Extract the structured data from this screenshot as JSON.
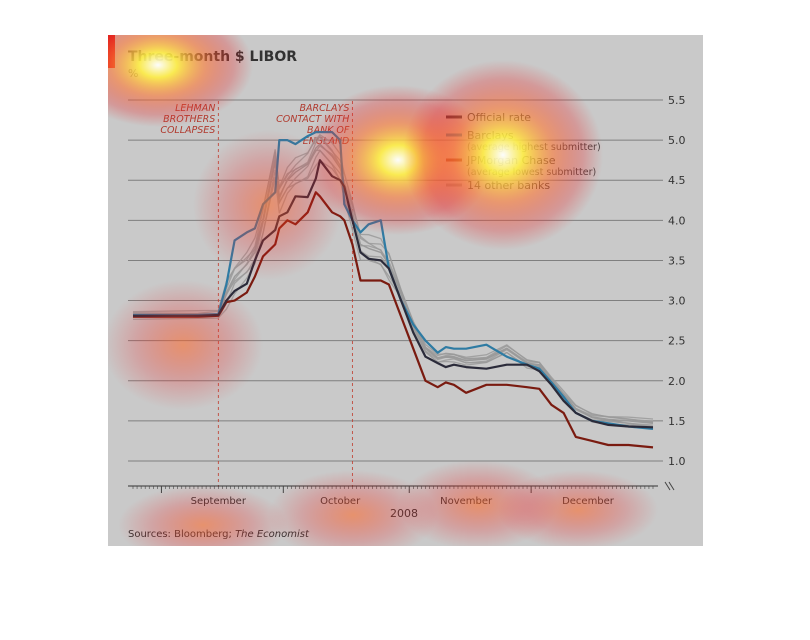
{
  "chart_data": {
    "type": "line",
    "title": "Three-month $ LIBOR",
    "unit": "%",
    "year_label": "2008",
    "ylim": [
      1.0,
      5.5
    ],
    "yticks": [
      1.0,
      1.5,
      2.0,
      2.5,
      3.0,
      3.5,
      4.0,
      4.5,
      5.0,
      5.5
    ],
    "ytick_labels": [
      "1.0",
      "1.5",
      "2.0",
      "2.5",
      "3.0",
      "3.5",
      "4.0",
      "4.5",
      "5.0",
      "5.5"
    ],
    "x_range": [
      "2008-08-25",
      "2008-12-31"
    ],
    "month_ticks": [
      {
        "label": "September",
        "date": "2008-09-15"
      },
      {
        "label": "October",
        "date": "2008-10-15"
      },
      {
        "label": "November",
        "date": "2008-11-15"
      },
      {
        "label": "December",
        "date": "2008-12-15"
      }
    ],
    "grid": true,
    "legend_position": "top-right",
    "annotations": [
      {
        "date": "2008-09-15",
        "lines": [
          "LEHMAN",
          "BROTHERS",
          "COLLAPSES"
        ]
      },
      {
        "date": "2008-10-18",
        "lines": [
          "BARCLAYS",
          "CONTACT WITH",
          "BANK OF",
          "ENGLAND"
        ]
      }
    ],
    "series": [
      {
        "name": "Official rate",
        "color": "#2b2b3a",
        "points": [
          [
            "2008-08-25",
            2.81
          ],
          [
            "2008-09-10",
            2.81
          ],
          [
            "2008-09-15",
            2.82
          ],
          [
            "2008-09-17",
            3.0
          ],
          [
            "2008-09-19",
            3.12
          ],
          [
            "2008-09-22",
            3.21
          ],
          [
            "2008-09-24",
            3.5
          ],
          [
            "2008-09-26",
            3.75
          ],
          [
            "2008-09-29",
            3.88
          ],
          [
            "2008-09-30",
            4.05
          ],
          [
            "2008-10-02",
            4.1
          ],
          [
            "2008-10-04",
            4.3
          ],
          [
            "2008-10-07",
            4.29
          ],
          [
            "2008-10-09",
            4.52
          ],
          [
            "2008-10-10",
            4.75
          ],
          [
            "2008-10-13",
            4.55
          ],
          [
            "2008-10-15",
            4.5
          ],
          [
            "2008-10-16",
            4.42
          ],
          [
            "2008-10-18",
            4.0
          ],
          [
            "2008-10-20",
            3.6
          ],
          [
            "2008-10-22",
            3.52
          ],
          [
            "2008-10-25",
            3.5
          ],
          [
            "2008-10-27",
            3.4
          ],
          [
            "2008-10-30",
            3.0
          ],
          [
            "2008-11-02",
            2.6
          ],
          [
            "2008-11-05",
            2.3
          ],
          [
            "2008-11-08",
            2.22
          ],
          [
            "2008-11-10",
            2.17
          ],
          [
            "2008-11-12",
            2.2
          ],
          [
            "2008-11-15",
            2.17
          ],
          [
            "2008-11-20",
            2.15
          ],
          [
            "2008-11-25",
            2.2
          ],
          [
            "2008-11-30",
            2.2
          ],
          [
            "2008-12-03",
            2.12
          ],
          [
            "2008-12-06",
            1.95
          ],
          [
            "2008-12-09",
            1.75
          ],
          [
            "2008-12-12",
            1.6
          ],
          [
            "2008-12-16",
            1.5
          ],
          [
            "2008-12-20",
            1.45
          ],
          [
            "2008-12-25",
            1.43
          ],
          [
            "2008-12-31",
            1.42
          ]
        ]
      },
      {
        "name": "Barclays",
        "subtitle": "(average highest submitter)",
        "color": "#2e7ba3",
        "points": [
          [
            "2008-08-25",
            2.82
          ],
          [
            "2008-09-10",
            2.82
          ],
          [
            "2008-09-15",
            2.83
          ],
          [
            "2008-09-17",
            3.2
          ],
          [
            "2008-09-19",
            3.75
          ],
          [
            "2008-09-22",
            3.85
          ],
          [
            "2008-09-24",
            3.9
          ],
          [
            "2008-09-26",
            4.2
          ],
          [
            "2008-09-29",
            4.35
          ],
          [
            "2008-09-30",
            5.0
          ],
          [
            "2008-10-02",
            5.0
          ],
          [
            "2008-10-04",
            4.95
          ],
          [
            "2008-10-07",
            5.05
          ],
          [
            "2008-10-09",
            5.1
          ],
          [
            "2008-10-10",
            5.1
          ],
          [
            "2008-10-13",
            5.1
          ],
          [
            "2008-10-15",
            5.0
          ],
          [
            "2008-10-16",
            4.2
          ],
          [
            "2008-10-18",
            4.0
          ],
          [
            "2008-10-20",
            3.85
          ],
          [
            "2008-10-22",
            3.95
          ],
          [
            "2008-10-25",
            4.0
          ],
          [
            "2008-10-27",
            3.4
          ],
          [
            "2008-10-30",
            3.0
          ],
          [
            "2008-11-02",
            2.7
          ],
          [
            "2008-11-05",
            2.5
          ],
          [
            "2008-11-08",
            2.35
          ],
          [
            "2008-11-10",
            2.42
          ],
          [
            "2008-11-12",
            2.4
          ],
          [
            "2008-11-15",
            2.4
          ],
          [
            "2008-11-20",
            2.45
          ],
          [
            "2008-11-25",
            2.3
          ],
          [
            "2008-11-30",
            2.2
          ],
          [
            "2008-12-03",
            2.15
          ],
          [
            "2008-12-06",
            1.98
          ],
          [
            "2008-12-09",
            1.8
          ],
          [
            "2008-12-12",
            1.6
          ],
          [
            "2008-12-16",
            1.5
          ],
          [
            "2008-12-20",
            1.47
          ],
          [
            "2008-12-25",
            1.43
          ],
          [
            "2008-12-31",
            1.4
          ]
        ]
      },
      {
        "name": "JPMorgan Chase",
        "subtitle": "(average lowest submitter)",
        "color": "#7a1b10",
        "points": [
          [
            "2008-08-25",
            2.8
          ],
          [
            "2008-09-10",
            2.8
          ],
          [
            "2008-09-15",
            2.81
          ],
          [
            "2008-09-17",
            2.98
          ],
          [
            "2008-09-19",
            3.0
          ],
          [
            "2008-09-22",
            3.1
          ],
          [
            "2008-09-24",
            3.3
          ],
          [
            "2008-09-26",
            3.55
          ],
          [
            "2008-09-29",
            3.7
          ],
          [
            "2008-09-30",
            3.9
          ],
          [
            "2008-10-02",
            4.0
          ],
          [
            "2008-10-04",
            3.95
          ],
          [
            "2008-10-07",
            4.1
          ],
          [
            "2008-10-09",
            4.35
          ],
          [
            "2008-10-10",
            4.3
          ],
          [
            "2008-10-13",
            4.1
          ],
          [
            "2008-10-15",
            4.05
          ],
          [
            "2008-10-16",
            4.0
          ],
          [
            "2008-10-18",
            3.7
          ],
          [
            "2008-10-20",
            3.25
          ],
          [
            "2008-10-22",
            3.25
          ],
          [
            "2008-10-25",
            3.25
          ],
          [
            "2008-10-27",
            3.2
          ],
          [
            "2008-10-30",
            2.8
          ],
          [
            "2008-11-02",
            2.4
          ],
          [
            "2008-11-05",
            2.0
          ],
          [
            "2008-11-08",
            1.92
          ],
          [
            "2008-11-10",
            1.98
          ],
          [
            "2008-11-12",
            1.95
          ],
          [
            "2008-11-15",
            1.85
          ],
          [
            "2008-11-20",
            1.95
          ],
          [
            "2008-11-25",
            1.95
          ],
          [
            "2008-11-30",
            1.92
          ],
          [
            "2008-12-03",
            1.9
          ],
          [
            "2008-12-06",
            1.7
          ],
          [
            "2008-12-09",
            1.6
          ],
          [
            "2008-12-12",
            1.3
          ],
          [
            "2008-12-16",
            1.25
          ],
          [
            "2008-12-20",
            1.2
          ],
          [
            "2008-12-25",
            1.2
          ],
          [
            "2008-12-31",
            1.17
          ]
        ]
      },
      {
        "name": "14 other banks",
        "color": "#9a9a9a",
        "points": [
          [
            "2008-08-25",
            2.82
          ],
          [
            "2008-09-10",
            2.82
          ],
          [
            "2008-09-15",
            2.83
          ],
          [
            "2008-09-17",
            3.1
          ],
          [
            "2008-09-19",
            3.3
          ],
          [
            "2008-09-22",
            3.45
          ],
          [
            "2008-09-24",
            3.6
          ],
          [
            "2008-09-26",
            4.0
          ],
          [
            "2008-09-29",
            4.75
          ],
          [
            "2008-09-30",
            4.3
          ],
          [
            "2008-10-02",
            4.5
          ],
          [
            "2008-10-04",
            4.6
          ],
          [
            "2008-10-07",
            4.7
          ],
          [
            "2008-10-09",
            4.9
          ],
          [
            "2008-10-10",
            4.95
          ],
          [
            "2008-10-13",
            4.8
          ],
          [
            "2008-10-15",
            4.65
          ],
          [
            "2008-10-16",
            4.45
          ],
          [
            "2008-10-18",
            4.1
          ],
          [
            "2008-10-20",
            3.7
          ],
          [
            "2008-10-22",
            3.65
          ],
          [
            "2008-10-25",
            3.6
          ],
          [
            "2008-10-27",
            3.45
          ],
          [
            "2008-10-30",
            3.1
          ],
          [
            "2008-11-02",
            2.7
          ],
          [
            "2008-11-05",
            2.4
          ],
          [
            "2008-11-08",
            2.28
          ],
          [
            "2008-11-10",
            2.3
          ],
          [
            "2008-11-12",
            2.3
          ],
          [
            "2008-11-15",
            2.25
          ],
          [
            "2008-11-20",
            2.27
          ],
          [
            "2008-11-25",
            2.4
          ],
          [
            "2008-11-30",
            2.22
          ],
          [
            "2008-12-03",
            2.2
          ],
          [
            "2008-12-06",
            2.0
          ],
          [
            "2008-12-09",
            1.82
          ],
          [
            "2008-12-12",
            1.65
          ],
          [
            "2008-12-16",
            1.55
          ],
          [
            "2008-12-20",
            1.52
          ],
          [
            "2008-12-25",
            1.5
          ],
          [
            "2008-12-31",
            1.47
          ]
        ]
      }
    ]
  },
  "source": {
    "prefix": "Sources: ",
    "text": "Bloomberg; ",
    "italic": "The Economist"
  }
}
